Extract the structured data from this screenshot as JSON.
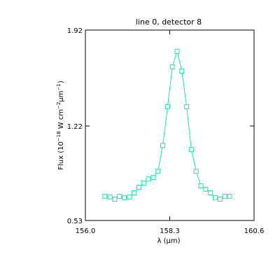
{
  "chart_data": {
    "type": "line",
    "title": "line 0, detector 8",
    "xlabel": "λ (μm)",
    "ylabel_parts": {
      "prefix": "Flux (10",
      "exp1": "−18",
      "mid1": " W cm",
      "exp2": "−2",
      "mu": "μ",
      "mid2": "m",
      "exp3": "−1",
      "suffix": ")"
    },
    "xlim": [
      156.0,
      160.6
    ],
    "ylim": [
      0.53,
      1.92
    ],
    "xticks": [
      156.0,
      158.3,
      160.6
    ],
    "xtick_labels": [
      "156.0",
      "158.3",
      "160.6"
    ],
    "yticks": [
      0.53,
      1.22,
      1.92
    ],
    "ytick_labels": [
      "0.53",
      "1.22",
      "1.92"
    ],
    "grid": false,
    "marker": "square",
    "color": "#20e0b0",
    "series": [
      {
        "x": [
          156.53,
          156.67,
          156.8,
          156.93,
          157.06,
          157.2,
          157.33,
          157.46,
          157.59,
          157.72,
          157.85,
          157.98,
          158.11,
          158.24,
          158.37,
          158.5,
          158.63,
          158.76,
          158.89,
          159.02,
          159.15,
          159.28,
          159.41,
          159.54,
          159.67,
          159.8,
          159.93
        ],
        "y": [
          0.707,
          0.702,
          0.686,
          0.707,
          0.697,
          0.702,
          0.732,
          0.773,
          0.803,
          0.833,
          0.844,
          0.889,
          1.078,
          1.361,
          1.651,
          1.765,
          1.621,
          1.361,
          1.048,
          0.889,
          0.783,
          0.758,
          0.732,
          0.697,
          0.686,
          0.707,
          0.707
        ]
      }
    ]
  }
}
